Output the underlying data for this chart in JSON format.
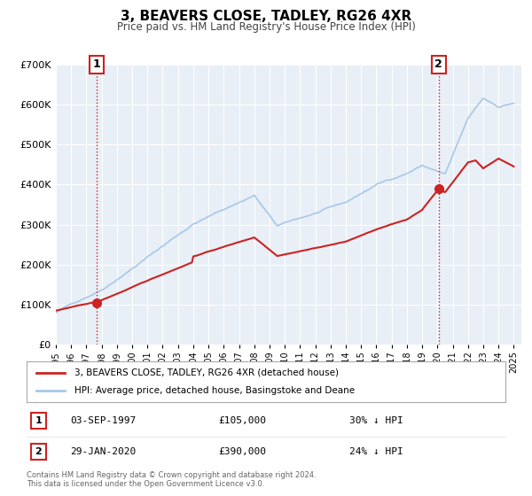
{
  "title": "3, BEAVERS CLOSE, TADLEY, RG26 4XR",
  "subtitle": "Price paid vs. HM Land Registry's House Price Index (HPI)",
  "legend_line1": "3, BEAVERS CLOSE, TADLEY, RG26 4XR (detached house)",
  "legend_line2": "HPI: Average price, detached house, Basingstoke and Deane",
  "annotation1_label": "1",
  "annotation1_date": "03-SEP-1997",
  "annotation1_price": "£105,000",
  "annotation1_hpi": "30% ↓ HPI",
  "annotation2_label": "2",
  "annotation2_date": "29-JAN-2020",
  "annotation2_price": "£390,000",
  "annotation2_hpi": "24% ↓ HPI",
  "footnote": "Contains HM Land Registry data © Crown copyright and database right 2024.\nThis data is licensed under the Open Government Licence v3.0.",
  "ylim": [
    0,
    700000
  ],
  "xlim_start": 1995.0,
  "xlim_end": 2025.5,
  "sale1_x": 1997.67,
  "sale1_y": 105000,
  "sale2_x": 2020.08,
  "sale2_y": 390000,
  "vline1_x": 1997.67,
  "vline2_x": 2020.08,
  "hpi_color": "#a8c8e8",
  "price_color": "#cc2222",
  "vline_color": "#cc2222",
  "dot_color": "#cc2222",
  "background_color": "#e8eff6",
  "plot_bg_color": "#e8eff6"
}
